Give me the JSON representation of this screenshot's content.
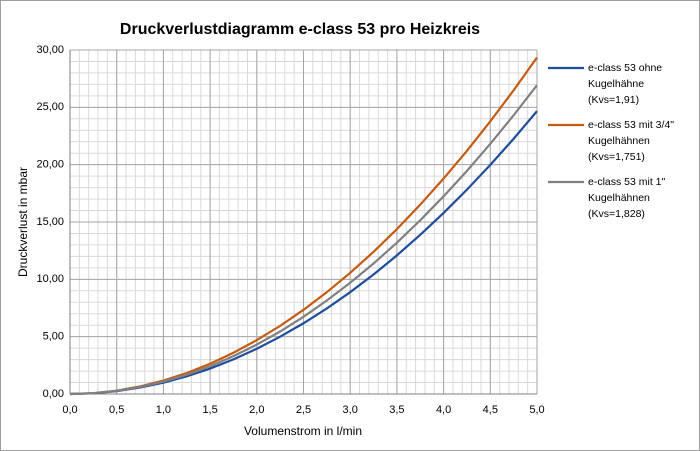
{
  "chart_data": {
    "type": "line",
    "title": "Druckverlustdiagramm e-class 53 pro Heizkreis",
    "x_label": "Volumenstrom in l/min",
    "y_label": "Druckverlust in mbar",
    "x": [
      0,
      0.25,
      0.5,
      0.75,
      1,
      1.25,
      1.5,
      1.75,
      2,
      2.25,
      2.5,
      2.75,
      3,
      3.25,
      3.5,
      3.75,
      4,
      4.25,
      4.5,
      4.75,
      5
    ],
    "series": [
      {
        "name": "e-class 53 ohne Kugelhähne (Kvs=1,91)",
        "color": "#1f4e9c",
        "values": [
          0,
          0.06,
          0.25,
          0.56,
          0.99,
          1.54,
          2.22,
          3.02,
          3.95,
          5.0,
          6.17,
          7.46,
          8.88,
          10.42,
          12.09,
          13.88,
          15.79,
          17.82,
          19.98,
          22.26,
          24.67
        ]
      },
      {
        "name": "e-class 53 mit 3/4\" Kugelhähnen (Kvs=1,751)",
        "color": "#c55a11",
        "values": [
          0,
          0.07,
          0.29,
          0.66,
          1.17,
          1.83,
          2.64,
          3.6,
          4.7,
          5.94,
          7.34,
          8.88,
          10.57,
          12.4,
          14.38,
          16.51,
          18.79,
          21.21,
          23.78,
          26.49,
          29.35
        ]
      },
      {
        "name": "e-class 53 mit 1\" Kugelhähnen (Kvs=1,828)",
        "color": "#808080",
        "values": [
          0,
          0.07,
          0.27,
          0.61,
          1.08,
          1.68,
          2.42,
          3.3,
          4.31,
          5.45,
          6.73,
          8.15,
          9.7,
          11.38,
          13.2,
          15.15,
          17.24,
          19.46,
          21.82,
          24.31,
          26.93
        ]
      }
    ],
    "xlim": [
      0,
      5
    ],
    "xticks": [
      {
        "value": 0,
        "label": "0,0"
      },
      {
        "value": 0.5,
        "label": "0,5"
      },
      {
        "value": 1,
        "label": "1,0"
      },
      {
        "value": 1.5,
        "label": "1,5"
      },
      {
        "value": 2,
        "label": "2,0"
      },
      {
        "value": 2.5,
        "label": "2,5"
      },
      {
        "value": 3,
        "label": "3,0"
      },
      {
        "value": 3.5,
        "label": "3,5"
      },
      {
        "value": 4,
        "label": "4,0"
      },
      {
        "value": 4.5,
        "label": "4,5"
      },
      {
        "value": 5,
        "label": "5,0"
      }
    ],
    "ylim": [
      0,
      30
    ],
    "yticks": [
      {
        "value": 0,
        "label": "0,00"
      },
      {
        "value": 5,
        "label": "5,00"
      },
      {
        "value": 10,
        "label": "10,00"
      },
      {
        "value": 15,
        "label": "15,00"
      },
      {
        "value": 20,
        "label": "20,00"
      },
      {
        "value": 25,
        "label": "25,00"
      },
      {
        "value": 30,
        "label": "30,00"
      }
    ],
    "grid": true,
    "minor_grid": true,
    "legend": "right"
  }
}
